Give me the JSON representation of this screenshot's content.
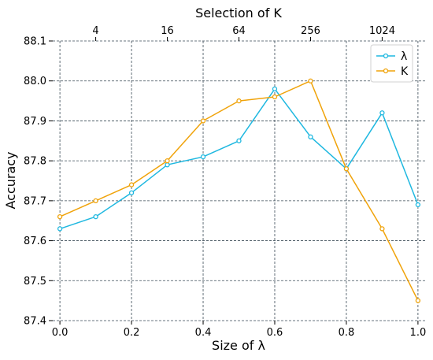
{
  "chart_data": {
    "type": "line",
    "xlabel": "Size of λ",
    "ylabel": "Accuracy",
    "top_xlabel": "Selection of K",
    "x": [
      0.0,
      0.1,
      0.2,
      0.3,
      0.4,
      0.5,
      0.6,
      0.7,
      0.8,
      0.9,
      1.0
    ],
    "xlim": [
      -0.02,
      1.02
    ],
    "ylim": [
      87.4,
      88.1
    ],
    "xticks": [
      0.0,
      0.2,
      0.4,
      0.6,
      0.8,
      1.0
    ],
    "xtick_labels": [
      "0.0",
      "0.2",
      "0.4",
      "0.6",
      "0.8",
      "1.0"
    ],
    "yticks": [
      87.4,
      87.5,
      87.6,
      87.7,
      87.8,
      87.9,
      88.0,
      88.1
    ],
    "ytick_labels": [
      "87.4",
      "87.5",
      "87.6",
      "87.7",
      "87.8",
      "87.9",
      "88.0",
      "88.1"
    ],
    "top_xticks": [
      0.1,
      0.3,
      0.5,
      0.7,
      0.9
    ],
    "top_xtick_labels": [
      "4",
      "16",
      "64",
      "256",
      "1024"
    ],
    "grid": true,
    "legend_position": "top-right",
    "series": [
      {
        "name": "λ",
        "color": "#1fb8e0",
        "values": [
          87.63,
          87.66,
          87.72,
          87.79,
          87.81,
          87.85,
          87.98,
          87.86,
          87.78,
          87.92,
          87.69
        ]
      },
      {
        "name": "K",
        "color": "#f0a30a",
        "values": [
          87.66,
          87.7,
          87.74,
          87.8,
          87.9,
          87.95,
          87.96,
          88.0,
          87.78,
          87.63,
          87.45
        ]
      }
    ]
  }
}
